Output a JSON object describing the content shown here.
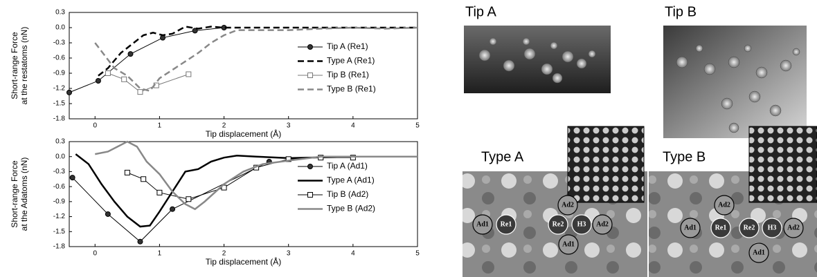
{
  "chart_data": [
    {
      "type": "line",
      "xlabel": "Tip displacement (Å)",
      "ylabel": [
        "Short-range Force",
        "at the restatoms (nN)"
      ],
      "xlim": [
        -0.4,
        5
      ],
      "ylim": [
        -1.8,
        0.3
      ],
      "xticks": [
        0,
        1,
        2,
        3,
        4,
        5
      ],
      "yticks": [
        0.3,
        {
          "value": 0,
          "label": "0.0"
        },
        -0.3,
        -0.6,
        -0.9,
        -1.2,
        -1.5,
        -1.8
      ],
      "legend": "right",
      "series": [
        {
          "name": "Tip A (Re1)",
          "color": "#000000",
          "marker": "circle",
          "dash": "solid",
          "width": 1,
          "x": [
            -0.4,
            0.05,
            0.55,
            1.05,
            1.55,
            2.0
          ],
          "values": [
            -1.28,
            -1.05,
            -0.52,
            -0.2,
            -0.06,
            0.0
          ]
        },
        {
          "name": "Type A (Re1)",
          "color": "#000000",
          "marker": "none",
          "dash": "dashed",
          "width": 2.5,
          "x": [
            0.05,
            0.2,
            0.4,
            0.6,
            0.75,
            0.9,
            1.05,
            1.2,
            1.4,
            1.6,
            1.8,
            2.0,
            2.5,
            3,
            4,
            5
          ],
          "values": [
            -0.95,
            -0.8,
            -0.5,
            -0.3,
            -0.15,
            -0.1,
            -0.15,
            -0.12,
            0.02,
            -0.02,
            0.02,
            0.0,
            0.0,
            0.0,
            0.0,
            0.0
          ]
        },
        {
          "name": "Tip B (Re1)",
          "color": "#777777",
          "marker": "square",
          "dash": "solid",
          "width": 1,
          "x": [
            0.2,
            0.45,
            0.7,
            0.95,
            1.45
          ],
          "values": [
            -0.9,
            -1.02,
            -1.27,
            -1.14,
            -0.92
          ]
        },
        {
          "name": "Type B (Re1)",
          "color": "#888888",
          "marker": "none",
          "dash": "dashed",
          "width": 2.5,
          "x": [
            0.0,
            0.15,
            0.3,
            0.5,
            0.7,
            0.85,
            1.0,
            1.3,
            1.6,
            1.8,
            2.0,
            2.2,
            2.5,
            3,
            3.5,
            4,
            4.5,
            5
          ],
          "values": [
            -0.3,
            -0.55,
            -0.8,
            -0.95,
            -1.2,
            -1.25,
            -1.0,
            -0.75,
            -0.5,
            -0.3,
            -0.15,
            -0.05,
            -0.05,
            -0.05,
            -0.02,
            0.0,
            -0.02,
            0.0
          ]
        }
      ]
    },
    {
      "type": "line",
      "xlabel": "Tip displacement (Å)",
      "ylabel": [
        "Short-range Force",
        "at the Adatoms (nN)"
      ],
      "xlim": [
        -0.4,
        5
      ],
      "ylim": [
        -1.8,
        0.3
      ],
      "xticks": [
        0,
        1,
        2,
        3,
        4,
        5
      ],
      "yticks": [
        0.3,
        {
          "value": 0,
          "label": "0.0"
        },
        -0.3,
        -0.6,
        -0.9,
        -1.2,
        -1.5,
        -1.8
      ],
      "legend": "right",
      "series": [
        {
          "name": "Tip A (Ad1)",
          "color": "#000000",
          "marker": "circle",
          "dash": "solid",
          "width": 1,
          "x": [
            -0.35,
            0.2,
            0.7,
            1.2,
            2.7
          ],
          "values": [
            -0.42,
            -1.15,
            -1.7,
            -1.05,
            -0.1
          ]
        },
        {
          "name": "Type A (Ad1)",
          "color": "#000000",
          "marker": "none",
          "dash": "solid",
          "width": 2.5,
          "x": [
            -0.3,
            -0.1,
            0.1,
            0.3,
            0.5,
            0.7,
            0.85,
            1.0,
            1.2,
            1.4,
            1.6,
            1.8,
            2.0,
            2.2,
            2.5,
            3,
            4,
            5
          ],
          "values": [
            0.05,
            -0.15,
            -0.55,
            -0.9,
            -1.2,
            -1.4,
            -1.38,
            -1.1,
            -0.7,
            -0.3,
            -0.25,
            -0.1,
            -0.02,
            0.02,
            0.0,
            -0.03,
            0.0,
            0.0
          ]
        },
        {
          "name": "Tip B (Ad2)",
          "color": "#000000",
          "marker": "square",
          "dash": "solid",
          "width": 1,
          "x": [
            0.5,
            0.75,
            1.0,
            1.45,
            2.0,
            2.5,
            3.0,
            3.5,
            4.0
          ],
          "values": [
            -0.32,
            -0.45,
            -0.72,
            -0.85,
            -0.62,
            -0.22,
            -0.05,
            -0.02,
            -0.02
          ]
        },
        {
          "name": "Type B (Ad2)",
          "color": "#888888",
          "marker": "none",
          "dash": "solid",
          "width": 2.5,
          "x": [
            0.0,
            0.2,
            0.35,
            0.5,
            0.65,
            0.8,
            1.0,
            1.2,
            1.4,
            1.55,
            1.7,
            2.0,
            2.3,
            2.6,
            3,
            3.5,
            4,
            5
          ],
          "values": [
            0.05,
            0.1,
            0.2,
            0.3,
            0.2,
            -0.1,
            -0.35,
            -0.7,
            -0.95,
            -1.05,
            -0.9,
            -0.55,
            -0.3,
            -0.15,
            -0.08,
            0.0,
            0.0,
            0.0
          ]
        }
      ]
    }
  ],
  "panels": [
    {
      "title": "Tip A"
    },
    {
      "title": "Tip B"
    },
    {
      "title": "Type A",
      "labels": [
        "Ad2",
        "Ad1",
        "Re1",
        "Re2",
        "H3",
        "Ad2",
        "Ad1"
      ]
    },
    {
      "title": "Type B",
      "labels": [
        "Ad2",
        "Ad1",
        "Re1",
        "Re2",
        "H3",
        "Ad2",
        "Ad1"
      ]
    }
  ]
}
